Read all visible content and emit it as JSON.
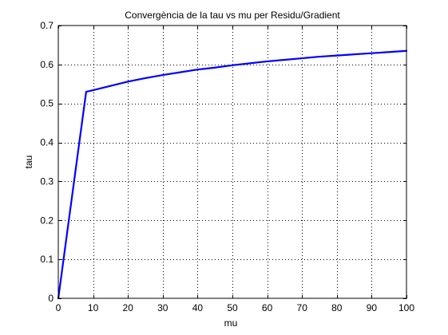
{
  "chart_data": {
    "type": "line",
    "title": "Convergència de la tau vs mu per Residu/Gradient",
    "xlabel": "mu",
    "ylabel": "tau",
    "xlim": [
      0,
      100
    ],
    "ylim": [
      0,
      0.7
    ],
    "xticks": [
      0,
      10,
      20,
      30,
      40,
      50,
      60,
      70,
      80,
      90,
      100
    ],
    "yticks": [
      0,
      0.1,
      0.2,
      0.3,
      0.4,
      0.5,
      0.6,
      0.7
    ],
    "xtick_labels": [
      "0",
      "10",
      "20",
      "30",
      "40",
      "50",
      "60",
      "70",
      "80",
      "90",
      "100"
    ],
    "ytick_labels": [
      "0",
      "0.1",
      "0.2",
      "0.3",
      "0.4",
      "0.5",
      "0.6",
      "0.7"
    ],
    "grid": true,
    "colors": {
      "line": "#0000ff",
      "axes": "#000000",
      "grid": "#000000",
      "background": "#ffffff"
    },
    "series": [
      {
        "x": [
          0,
          8,
          10,
          15,
          20,
          25,
          30,
          35,
          40,
          45,
          50,
          55,
          60,
          65,
          70,
          75,
          80,
          85,
          90,
          95,
          100
        ],
        "y": [
          0,
          0.53,
          0.534,
          0.545,
          0.556,
          0.565,
          0.573,
          0.58,
          0.587,
          0.592,
          0.598,
          0.603,
          0.608,
          0.612,
          0.616,
          0.62,
          0.623,
          0.626,
          0.629,
          0.632,
          0.635
        ]
      }
    ]
  }
}
